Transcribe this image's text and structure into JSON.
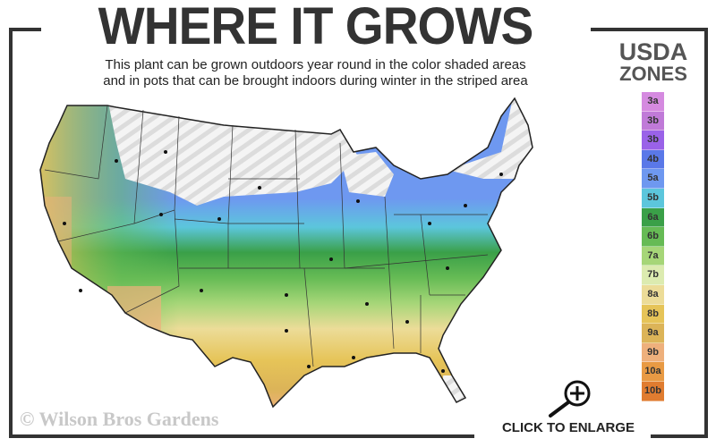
{
  "header": {
    "title": "WHERE IT GROWS",
    "subtitle_line1": "This plant can be grown outdoors year round in the color shaded areas",
    "subtitle_line2": "and in pots that can be brought indoors during winter in the striped area"
  },
  "legend": {
    "title_line1": "USDA",
    "title_line2": "ZONES",
    "zones": [
      {
        "label": "3a",
        "color": "#d58ae0"
      },
      {
        "label": "3b",
        "color": "#c07ad8"
      },
      {
        "label": "3b",
        "color": "#9a62e8"
      },
      {
        "label": "4b",
        "color": "#5a78e8"
      },
      {
        "label": "5a",
        "color": "#6e98f0"
      },
      {
        "label": "5b",
        "color": "#5cc6dc"
      },
      {
        "label": "6a",
        "color": "#3aa048"
      },
      {
        "label": "6b",
        "color": "#66bb55"
      },
      {
        "label": "7a",
        "color": "#a6d678"
      },
      {
        "label": "7b",
        "color": "#dcebb0"
      },
      {
        "label": "8a",
        "color": "#ecdc98"
      },
      {
        "label": "8b",
        "color": "#e6c458"
      },
      {
        "label": "9a",
        "color": "#dcb458"
      },
      {
        "label": "9b",
        "color": "#eeb07c"
      },
      {
        "label": "10a",
        "color": "#e89a44"
      },
      {
        "label": "10b",
        "color": "#e07c30"
      }
    ]
  },
  "map": {
    "striped_area": "indoor-pots-winter",
    "shaded_area": "outdoors-year-round"
  },
  "watermark": "© Wilson Bros Gardens",
  "enlarge": {
    "label": "CLICK TO ENLARGE",
    "icon": "zoom-in-icon"
  }
}
